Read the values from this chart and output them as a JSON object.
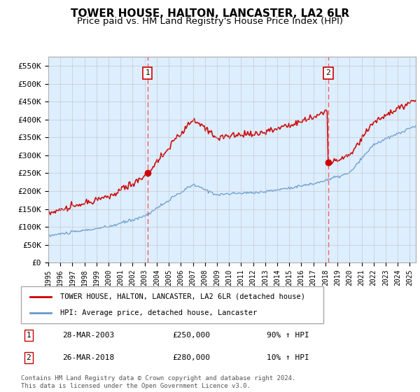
{
  "title": "TOWER HOUSE, HALTON, LANCASTER, LA2 6LR",
  "subtitle": "Price paid vs. HM Land Registry's House Price Index (HPI)",
  "ylim": [
    0,
    575000
  ],
  "xlim_start": 1995.0,
  "xlim_end": 2025.5,
  "yticks": [
    0,
    50000,
    100000,
    150000,
    200000,
    250000,
    300000,
    350000,
    400000,
    450000,
    500000,
    550000
  ],
  "ytick_labels": [
    "£0",
    "£50K",
    "£100K",
    "£150K",
    "£200K",
    "£250K",
    "£300K",
    "£350K",
    "£400K",
    "£450K",
    "£500K",
    "£550K"
  ],
  "xtick_years": [
    1995,
    1996,
    1997,
    1998,
    1999,
    2000,
    2001,
    2002,
    2003,
    2004,
    2005,
    2006,
    2007,
    2008,
    2009,
    2010,
    2011,
    2012,
    2013,
    2014,
    2015,
    2016,
    2017,
    2018,
    2019,
    2020,
    2021,
    2022,
    2023,
    2024,
    2025
  ],
  "sale1_x": 2003.23,
  "sale1_y": 250000,
  "sale2_x": 2018.23,
  "sale2_y": 280000,
  "sale1_label": "1",
  "sale2_label": "2",
  "red_line_color": "#cc0000",
  "blue_line_color": "#6699cc",
  "dashed_line_color": "#ff4444",
  "marker_box_color": "#cc0000",
  "background_color": "#ddeeff",
  "grid_color": "#bbbbbb",
  "title_fontsize": 11,
  "subtitle_fontsize": 9.5,
  "legend_line1": "TOWER HOUSE, HALTON, LANCASTER, LA2 6LR (detached house)",
  "legend_line2": "HPI: Average price, detached house, Lancaster",
  "table_row1_num": "1",
  "table_row1_date": "28-MAR-2003",
  "table_row1_price": "£250,000",
  "table_row1_hpi": "90% ↑ HPI",
  "table_row2_num": "2",
  "table_row2_date": "26-MAR-2018",
  "table_row2_price": "£280,000",
  "table_row2_hpi": "10% ↑ HPI",
  "footer": "Contains HM Land Registry data © Crown copyright and database right 2024.\nThis data is licensed under the Open Government Licence v3.0."
}
